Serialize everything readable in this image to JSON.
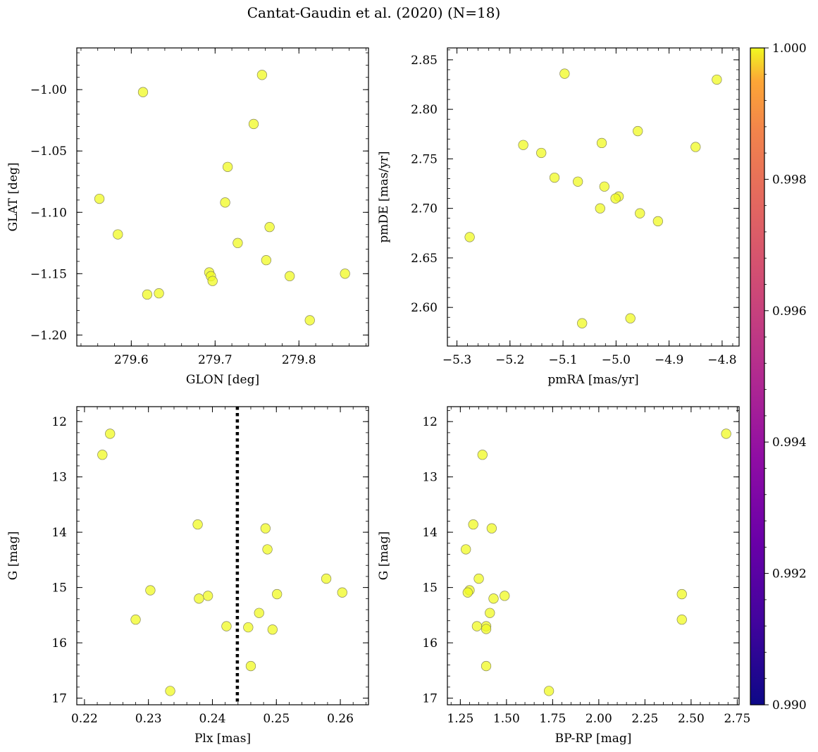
{
  "figure": {
    "title": "Cantat-Gaudin et al. (2020) (N=18)"
  },
  "colorbar": {
    "min": 0.99,
    "max": 1.0,
    "ticks": [
      "0.990",
      "0.992",
      "0.994",
      "0.996",
      "0.998",
      "1.000"
    ],
    "colormap": "plasma"
  },
  "point_style": {
    "fill": "#f0f921",
    "edge": "#8a8a5a",
    "alpha": 0.75
  },
  "chart_data": [
    {
      "type": "scatter",
      "id": "glon-glat",
      "xlabel": "GLON [deg]",
      "ylabel": "GLAT [deg]",
      "xlim": [
        279.535,
        279.883
      ],
      "ylim": [
        -1.209,
        -0.966
      ],
      "xticks": [
        279.6,
        279.7,
        279.8
      ],
      "xtick_labels": [
        "279.6",
        "279.7",
        "279.8"
      ],
      "yticks": [
        -1.0,
        -1.05,
        -1.1,
        -1.15,
        -1.2
      ],
      "ytick_labels": [
        "−1.00",
        "−1.05",
        "−1.10",
        "−1.15",
        "−1.20"
      ],
      "x": [
        279.756,
        279.614,
        279.746,
        279.715,
        279.562,
        279.712,
        279.584,
        279.765,
        279.727,
        279.761,
        279.693,
        279.695,
        279.697,
        279.619,
        279.633,
        279.789,
        279.855,
        279.813
      ],
      "y": [
        -0.988,
        -1.002,
        -1.028,
        -1.063,
        -1.089,
        -1.092,
        -1.118,
        -1.112,
        -1.125,
        -1.139,
        -1.149,
        -1.152,
        -1.156,
        -1.167,
        -1.166,
        -1.152,
        -1.15,
        -1.188
      ],
      "color_values": [
        1,
        1,
        1,
        1,
        1,
        1,
        1,
        1,
        1,
        1,
        1,
        1,
        1,
        1,
        1,
        1,
        1,
        1
      ]
    },
    {
      "type": "scatter",
      "id": "pmra-pmde",
      "xlabel": "pmRA [mas/yr]",
      "ylabel": "pmDE [mas/yr]",
      "xlim": [
        -5.318,
        -4.768
      ],
      "ylim": [
        2.561,
        2.862
      ],
      "xticks": [
        -5.3,
        -5.2,
        -5.1,
        -5.0,
        -4.9,
        -4.8
      ],
      "xtick_labels": [
        "−5.3",
        "−5.2",
        "−5.1",
        "−5.0",
        "−4.9",
        "−4.8"
      ],
      "yticks": [
        2.6,
        2.65,
        2.7,
        2.75,
        2.8,
        2.85
      ],
      "ytick_labels": [
        "2.60",
        "2.65",
        "2.70",
        "2.75",
        "2.80",
        "2.85"
      ],
      "x": [
        -5.097,
        -4.81,
        -5.175,
        -5.141,
        -5.027,
        -4.959,
        -4.85,
        -5.116,
        -5.072,
        -5.022,
        -4.995,
        -5.001,
        -5.03,
        -4.955,
        -4.921,
        -5.276,
        -4.973,
        -5.064
      ],
      "y": [
        2.836,
        2.83,
        2.764,
        2.756,
        2.766,
        2.778,
        2.762,
        2.731,
        2.727,
        2.722,
        2.712,
        2.71,
        2.7,
        2.695,
        2.687,
        2.671,
        2.589,
        2.584
      ],
      "color_values": [
        1,
        1,
        1,
        1,
        1,
        1,
        1,
        1,
        1,
        1,
        1,
        1,
        1,
        1,
        1,
        1,
        1,
        1
      ]
    },
    {
      "type": "scatter",
      "id": "plx-g",
      "xlabel": "Plx [mas]",
      "ylabel": "G [mag]",
      "xlim": [
        0.2188,
        0.2644
      ],
      "ylim": [
        17.12,
        11.73
      ],
      "y_inverted": true,
      "xticks": [
        0.22,
        0.23,
        0.24,
        0.25,
        0.26
      ],
      "xtick_labels": [
        "0.22",
        "0.23",
        "0.24",
        "0.25",
        "0.26"
      ],
      "yticks": [
        12,
        13,
        14,
        15,
        16,
        17
      ],
      "ytick_labels": [
        "12",
        "13",
        "14",
        "15",
        "16",
        "17"
      ],
      "x": [
        0.224,
        0.2228,
        0.2377,
        0.2483,
        0.2486,
        0.2578,
        0.2603,
        0.2303,
        0.2393,
        0.2379,
        0.2501,
        0.2473,
        0.228,
        0.2422,
        0.2456,
        0.2494,
        0.246,
        0.2334
      ],
      "y": [
        12.22,
        12.6,
        13.86,
        13.93,
        14.31,
        14.84,
        15.09,
        15.05,
        15.15,
        15.2,
        15.12,
        15.46,
        15.58,
        15.7,
        15.72,
        15.76,
        16.42,
        16.87
      ],
      "color_values": [
        1,
        1,
        1,
        1,
        1,
        1,
        1,
        1,
        1,
        1,
        1,
        1,
        1,
        1,
        1,
        1,
        1,
        1
      ],
      "vline": {
        "x": 0.2439,
        "style": "dotted"
      }
    },
    {
      "type": "scatter",
      "id": "bprp-g",
      "xlabel": "BP-RP [mag]",
      "ylabel": "G [mag]",
      "xlim": [
        1.18,
        2.76
      ],
      "ylim": [
        17.12,
        11.73
      ],
      "y_inverted": true,
      "xticks": [
        1.25,
        1.5,
        1.75,
        2.0,
        2.25,
        2.5,
        2.75
      ],
      "xtick_labels": [
        "1.25",
        "1.50",
        "1.75",
        "2.00",
        "2.25",
        "2.50",
        "2.75"
      ],
      "yticks": [
        12,
        13,
        14,
        15,
        16,
        17
      ],
      "ytick_labels": [
        "12",
        "13",
        "14",
        "15",
        "16",
        "17"
      ],
      "x": [
        2.69,
        1.37,
        1.32,
        1.42,
        1.28,
        1.35,
        1.3,
        1.29,
        1.43,
        1.49,
        2.45,
        1.41,
        2.45,
        1.34,
        1.39,
        1.39,
        1.39,
        1.73
      ],
      "y": [
        12.22,
        12.6,
        13.86,
        13.93,
        14.31,
        14.84,
        15.05,
        15.09,
        15.2,
        15.15,
        15.12,
        15.46,
        15.58,
        15.7,
        15.7,
        15.75,
        16.42,
        16.87
      ],
      "color_values": [
        1,
        1,
        1,
        1,
        1,
        1,
        1,
        1,
        1,
        1,
        1,
        1,
        1,
        1,
        1,
        1,
        1,
        1
      ]
    }
  ]
}
